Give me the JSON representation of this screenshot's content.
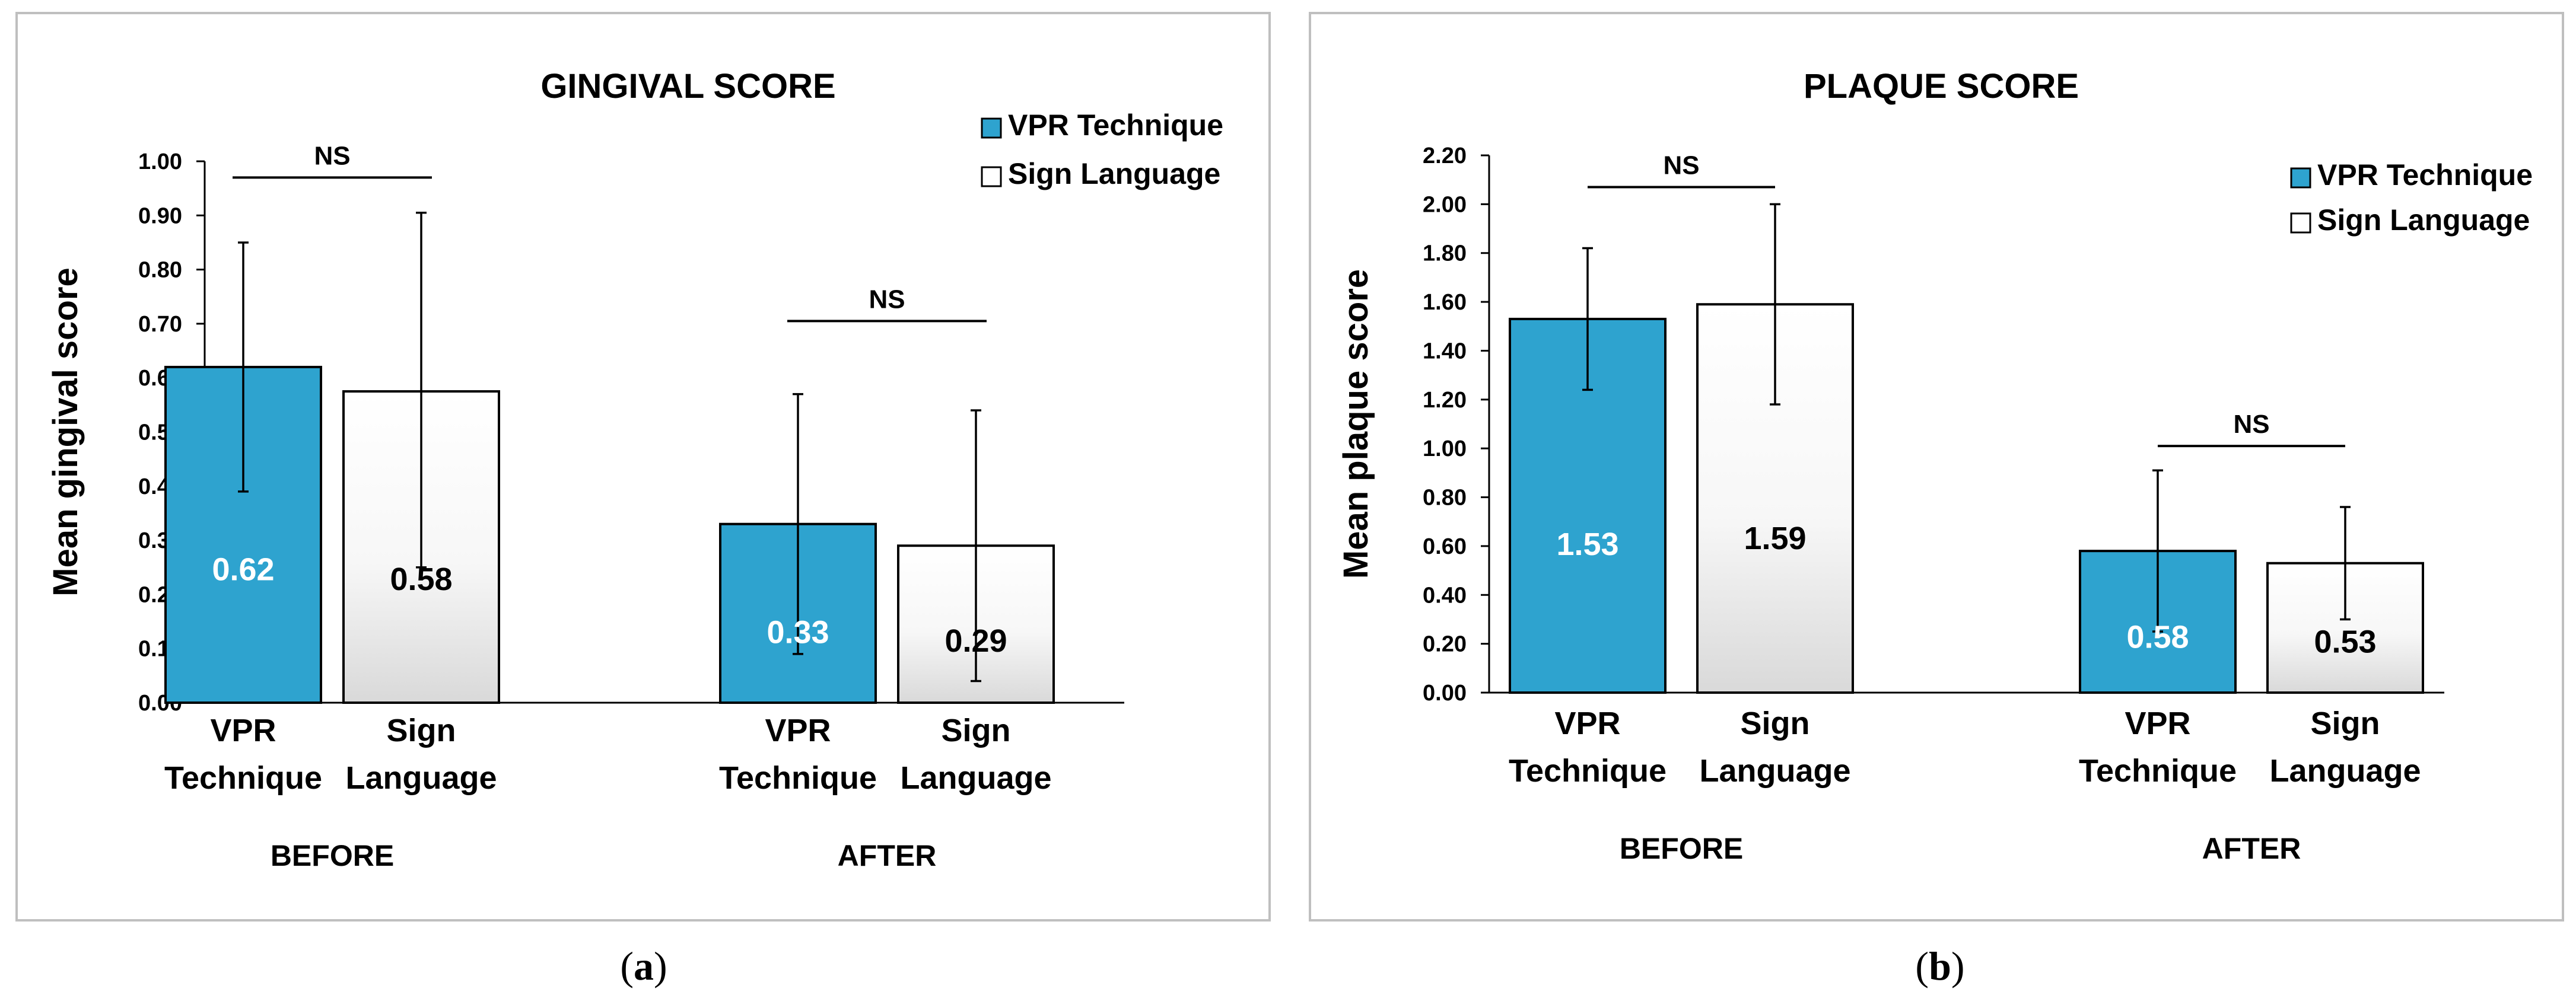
{
  "colors": {
    "vpr_fill": "#2ea3cf",
    "sign_fill_top": "#ffffff",
    "sign_fill_bottom": "#d9d9d9",
    "vpr_value_text": "#ffffff",
    "sign_value_text": "#000000"
  },
  "chart_data": [
    {
      "type": "bar",
      "panel_caption": "a",
      "title": "GINGIVAL SCORE",
      "ylabel": "Mean gingival score",
      "ylim": [
        0,
        1.0
      ],
      "ytick_step": 0.1,
      "yticks": [
        "0.00",
        "0.10",
        "0.20",
        "0.30",
        "0.40",
        "0.50",
        "0.60",
        "0.70",
        "0.80",
        "0.90",
        "1.00"
      ],
      "legend": [
        "VPR Technique",
        "Sign Language"
      ],
      "legend_placement": "top-right",
      "groups": [
        {
          "label": "BEFORE",
          "bars": [
            {
              "series": "VPR Technique",
              "label_lines": [
                "VPR",
                "Technique"
              ],
              "value": 0.62,
              "value_label": "0.62",
              "err_low": 0.39,
              "err_high": 0.85
            },
            {
              "series": "Sign Language",
              "label_lines": [
                "Sign",
                "Language"
              ],
              "value": 0.575,
              "value_label": "0.58",
              "err_low": 0.25,
              "err_high": 0.905
            }
          ],
          "sig": {
            "label": "NS",
            "level": 0.97
          }
        },
        {
          "label": "AFTER",
          "bars": [
            {
              "series": "VPR Technique",
              "label_lines": [
                "VPR",
                "Technique"
              ],
              "value": 0.33,
              "value_label": "0.33",
              "err_low": 0.09,
              "err_high": 0.57
            },
            {
              "series": "Sign Language",
              "label_lines": [
                "Sign",
                "Language"
              ],
              "value": 0.29,
              "value_label": "0.29",
              "err_low": 0.04,
              "err_high": 0.54
            }
          ],
          "sig": {
            "label": "NS",
            "level": 0.705
          }
        }
      ]
    },
    {
      "type": "bar",
      "panel_caption": "b",
      "title": "PLAQUE SCORE",
      "ylabel": "Mean plaque score",
      "ylim": [
        0,
        2.2
      ],
      "ytick_step": 0.2,
      "yticks": [
        "0.00",
        "0.20",
        "0.40",
        "0.60",
        "0.80",
        "1.00",
        "1.20",
        "1.40",
        "1.60",
        "1.80",
        "2.00",
        "2.20"
      ],
      "legend": [
        "VPR Technique",
        "Sign Language"
      ],
      "legend_placement": "top-right",
      "groups": [
        {
          "label": "BEFORE",
          "bars": [
            {
              "series": "VPR Technique",
              "label_lines": [
                "VPR",
                "Technique"
              ],
              "value": 1.53,
              "value_label": "1.53",
              "err_low": 1.24,
              "err_high": 1.82
            },
            {
              "series": "Sign Language",
              "label_lines": [
                "Sign",
                "Language"
              ],
              "value": 1.59,
              "value_label": "1.59",
              "err_low": 1.18,
              "err_high": 2.0
            }
          ],
          "sig": {
            "label": "NS",
            "level": 2.07
          }
        },
        {
          "label": "AFTER",
          "bars": [
            {
              "series": "VPR Technique",
              "label_lines": [
                "VPR",
                "Technique"
              ],
              "value": 0.58,
              "value_label": "0.58",
              "err_low": 0.25,
              "err_high": 0.91
            },
            {
              "series": "Sign Language",
              "label_lines": [
                "Sign",
                "Language"
              ],
              "value": 0.53,
              "value_label": "0.53",
              "err_low": 0.3,
              "err_high": 0.76
            }
          ],
          "sig": {
            "label": "NS",
            "level": 1.01
          }
        }
      ]
    }
  ]
}
